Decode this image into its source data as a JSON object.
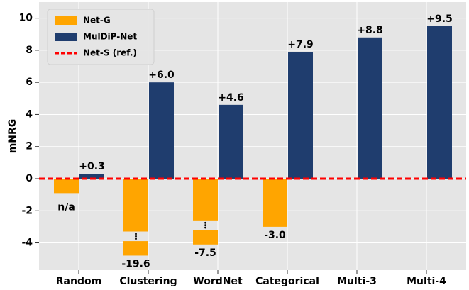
{
  "chart_data": {
    "type": "bar",
    "y_label": "mNRG",
    "categories": [
      "Random",
      "Clustering",
      "WordNet",
      "Categorical",
      "Multi-3",
      "Multi-4"
    ],
    "series": [
      {
        "name": "Net-G",
        "color": "#ffa500",
        "values": [
          -0.9,
          -19.6,
          -7.5,
          -3.0,
          null,
          null
        ],
        "value_labels": [
          null,
          "-19.6",
          "-7.5",
          "-3.0",
          null,
          null
        ]
      },
      {
        "name": "MulDiP-Net",
        "color": "#1f3d6e",
        "values": [
          0.3,
          6.0,
          4.6,
          7.9,
          8.8,
          9.5
        ],
        "value_labels": [
          "+0.3",
          "+6.0",
          "+4.6",
          "+7.9",
          "+8.8",
          "+9.5"
        ]
      }
    ],
    "reference_line": {
      "name": "Net-S (ref.)",
      "value": 0,
      "color": "#ff0000"
    },
    "annotations": [
      {
        "text": "n/a",
        "x": "Random"
      }
    ],
    "ylim": [
      -5.7,
      11
    ],
    "yticks": [
      -4,
      -2,
      0,
      2,
      4,
      6,
      8,
      10
    ],
    "grid": true,
    "legend": "upper left"
  }
}
